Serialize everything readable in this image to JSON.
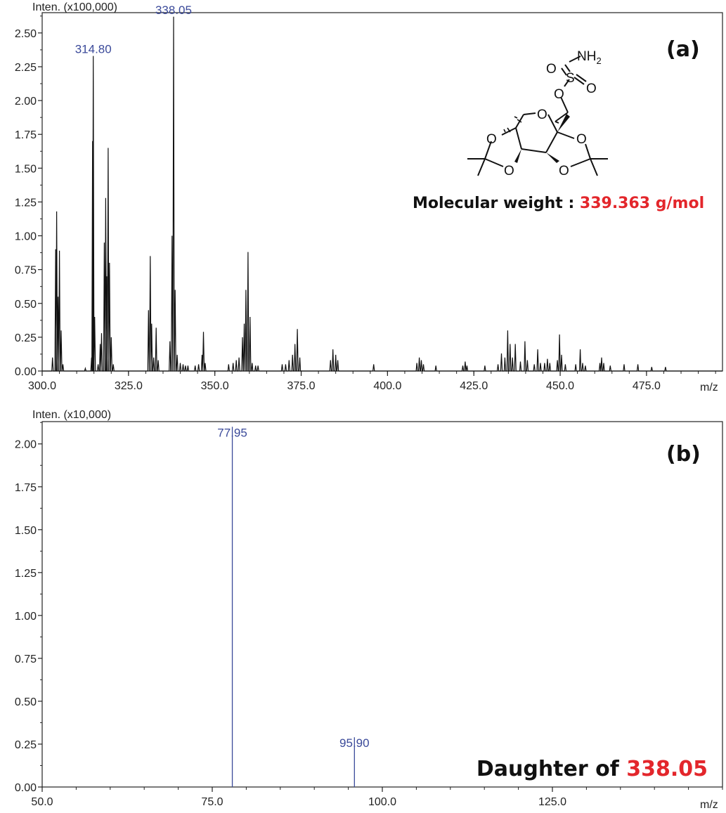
{
  "colors": {
    "axis": "#222222",
    "trace": "#111111",
    "peak_label": "#3b4a9a",
    "highlight": "#e3262b",
    "text": "#111111"
  },
  "chart_data": [
    {
      "type": "line",
      "panel_label": "(a)",
      "ylabel": "Inten. (x100,000)",
      "xlabel": "m/z",
      "xlim": [
        300.0,
        497.0
      ],
      "ylim": [
        0,
        2.65
      ],
      "xticks": [
        "300.0",
        "325.0",
        "350.0",
        "375.0",
        "400.0",
        "425.0",
        "450.0",
        "475.0"
      ],
      "yticks": [
        "0.00",
        "0.25",
        "0.50",
        "0.75",
        "1.00",
        "1.25",
        "1.50",
        "1.75",
        "2.00",
        "2.25",
        "2.50"
      ],
      "peak_labels": [
        {
          "text": "314.80",
          "x": 314.8,
          "y": 2.33
        },
        {
          "text": "338.05",
          "x": 338.05,
          "y": 2.62
        }
      ],
      "annotation": {
        "prefix": "Molecular weight : ",
        "value": "339.363 g/mol"
      },
      "structure_labels": [
        "NH2",
        "O",
        "S",
        "O",
        "O",
        "O",
        "O",
        "O",
        "O",
        "O"
      ],
      "peaks": [
        [
          303.0,
          0.1
        ],
        [
          303.9,
          0.9
        ],
        [
          304.2,
          1.18
        ],
        [
          304.6,
          0.55
        ],
        [
          305.0,
          0.89
        ],
        [
          305.5,
          0.3
        ],
        [
          306.0,
          0.05
        ],
        [
          312.5,
          0.02
        ],
        [
          314.3,
          0.1
        ],
        [
          314.6,
          1.7
        ],
        [
          314.8,
          2.33
        ],
        [
          315.2,
          0.4
        ],
        [
          316.2,
          0.05
        ],
        [
          316.8,
          0.2
        ],
        [
          317.2,
          0.28
        ],
        [
          318.0,
          0.95
        ],
        [
          318.4,
          1.28
        ],
        [
          318.7,
          0.7
        ],
        [
          319.1,
          1.65
        ],
        [
          319.5,
          0.8
        ],
        [
          320.0,
          0.25
        ],
        [
          320.6,
          0.05
        ],
        [
          330.8,
          0.45
        ],
        [
          331.3,
          0.85
        ],
        [
          331.7,
          0.35
        ],
        [
          332.3,
          0.1
        ],
        [
          333.0,
          0.32
        ],
        [
          333.6,
          0.08
        ],
        [
          337.0,
          0.22
        ],
        [
          337.6,
          1.0
        ],
        [
          338.05,
          2.62
        ],
        [
          338.5,
          0.6
        ],
        [
          339.1,
          0.12
        ],
        [
          340.0,
          0.06
        ],
        [
          340.8,
          0.05
        ],
        [
          341.5,
          0.04
        ],
        [
          342.2,
          0.04
        ],
        [
          344.3,
          0.04
        ],
        [
          345.3,
          0.05
        ],
        [
          346.3,
          0.12
        ],
        [
          346.7,
          0.29
        ],
        [
          347.2,
          0.06
        ],
        [
          354.0,
          0.05
        ],
        [
          355.3,
          0.06
        ],
        [
          356.2,
          0.08
        ],
        [
          357.0,
          0.1
        ],
        [
          358.0,
          0.25
        ],
        [
          358.5,
          0.35
        ],
        [
          359.0,
          0.6
        ],
        [
          359.6,
          0.88
        ],
        [
          360.2,
          0.4
        ],
        [
          360.8,
          0.06
        ],
        [
          361.8,
          0.04
        ],
        [
          362.5,
          0.04
        ],
        [
          369.5,
          0.05
        ],
        [
          370.5,
          0.05
        ],
        [
          371.5,
          0.08
        ],
        [
          372.5,
          0.12
        ],
        [
          373.2,
          0.2
        ],
        [
          373.9,
          0.31
        ],
        [
          374.6,
          0.1
        ],
        [
          383.5,
          0.08
        ],
        [
          384.2,
          0.16
        ],
        [
          385.0,
          0.12
        ],
        [
          385.6,
          0.08
        ],
        [
          396.0,
          0.05
        ],
        [
          408.5,
          0.06
        ],
        [
          409.2,
          0.1
        ],
        [
          409.8,
          0.08
        ],
        [
          410.4,
          0.05
        ],
        [
          414.0,
          0.04
        ],
        [
          421.8,
          0.04
        ],
        [
          422.5,
          0.07
        ],
        [
          423.0,
          0.04
        ],
        [
          428.2,
          0.04
        ],
        [
          432.0,
          0.05
        ],
        [
          433.0,
          0.13
        ],
        [
          434.0,
          0.1
        ],
        [
          434.8,
          0.3
        ],
        [
          435.5,
          0.2
        ],
        [
          436.2,
          0.1
        ],
        [
          437.0,
          0.2
        ],
        [
          438.5,
          0.07
        ],
        [
          439.8,
          0.22
        ],
        [
          440.5,
          0.08
        ],
        [
          442.5,
          0.05
        ],
        [
          443.5,
          0.16
        ],
        [
          444.3,
          0.06
        ],
        [
          445.5,
          0.06
        ],
        [
          446.3,
          0.09
        ],
        [
          447.0,
          0.06
        ],
        [
          449.2,
          0.08
        ],
        [
          449.8,
          0.27
        ],
        [
          450.4,
          0.12
        ],
        [
          451.5,
          0.05
        ],
        [
          454.5,
          0.05
        ],
        [
          455.8,
          0.16
        ],
        [
          456.5,
          0.06
        ],
        [
          457.3,
          0.04
        ],
        [
          461.5,
          0.06
        ],
        [
          462.0,
          0.1
        ],
        [
          462.6,
          0.06
        ],
        [
          464.5,
          0.04
        ],
        [
          468.5,
          0.05
        ],
        [
          472.5,
          0.05
        ],
        [
          476.5,
          0.03
        ],
        [
          480.5,
          0.03
        ]
      ]
    },
    {
      "type": "bar",
      "panel_label": "(b)",
      "ylabel": "Inten. (x10,000)",
      "xlabel": "m/z",
      "xlim": [
        50.0,
        150.0
      ],
      "ylim": [
        0,
        2.13
      ],
      "xticks": [
        "50.0",
        "75.0",
        "100.0",
        "125.0"
      ],
      "yticks": [
        "0.00",
        "0.25",
        "0.50",
        "0.75",
        "1.00",
        "1.25",
        "1.50",
        "1.75",
        "2.00"
      ],
      "peaks": [
        {
          "x": 77.95,
          "y": 2.1,
          "label": "77.95"
        },
        {
          "x": 95.9,
          "y": 0.29,
          "label": "95.90"
        }
      ],
      "annotation": {
        "prefix": "Daughter of ",
        "value": "338.05"
      }
    }
  ]
}
